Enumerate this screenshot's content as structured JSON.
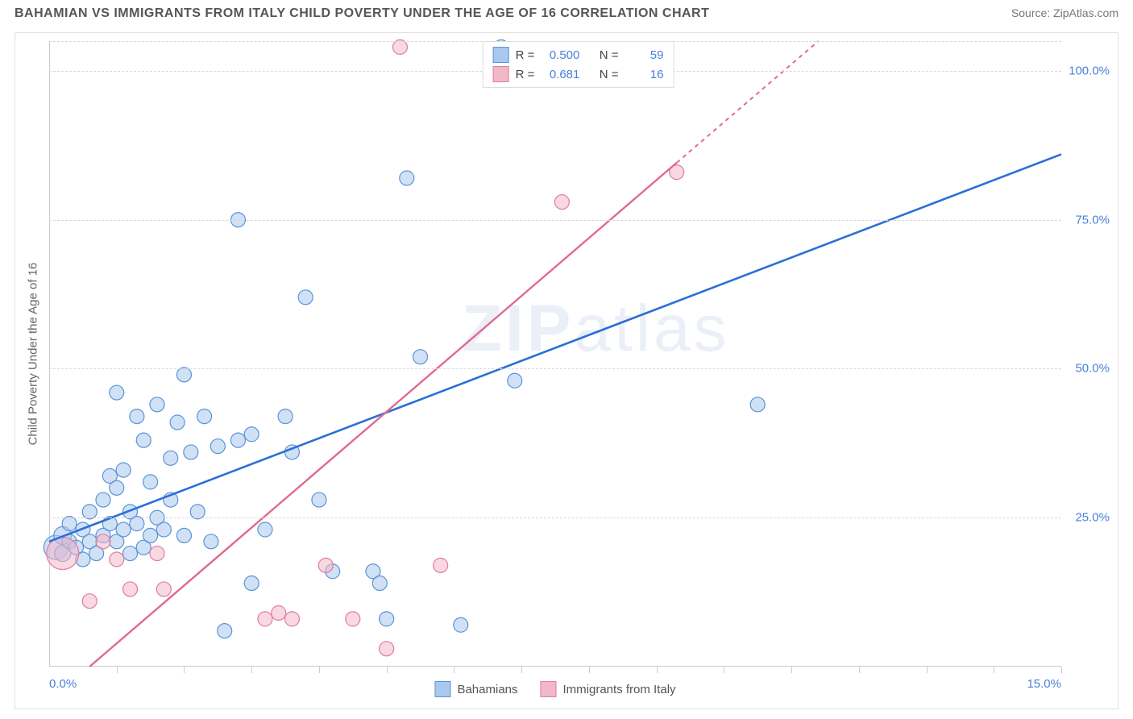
{
  "header": {
    "title": "BAHAMIAN VS IMMIGRANTS FROM ITALY CHILD POVERTY UNDER THE AGE OF 16 CORRELATION CHART",
    "source": "Source: ZipAtlas.com"
  },
  "chart": {
    "type": "scatter",
    "y_axis_label": "Child Poverty Under the Age of 16",
    "watermark": "ZIPatlas",
    "xlim": [
      0,
      15
    ],
    "ylim": [
      0,
      105
    ],
    "x_ticks": [
      0,
      5,
      10,
      15
    ],
    "x_tick_labels": [
      "0.0%",
      "",
      "",
      "15.0%"
    ],
    "num_x_minor": 15,
    "y_gridlines": [
      25,
      50,
      75,
      100
    ],
    "y_tick_labels": [
      "25.0%",
      "50.0%",
      "75.0%",
      "100.0%"
    ],
    "background_color": "#ffffff",
    "grid_color": "#d8d8d8",
    "axis_label_color": "#4a7fd8",
    "series": [
      {
        "name": "Bahamians",
        "fill": "#a9c8ef",
        "stroke": "#5a93d8",
        "line_color": "#2a6fd6",
        "fill_opacity": 0.55,
        "marker_r": 9,
        "r_stat": "0.500",
        "n_stat": "59",
        "trend": {
          "x1": 0,
          "y1": 21,
          "x2": 15,
          "y2": 86,
          "dash": false
        },
        "points": [
          [
            0.1,
            20,
            15
          ],
          [
            0.2,
            22,
            11
          ],
          [
            0.2,
            19,
            10
          ],
          [
            0.3,
            21,
            9
          ],
          [
            0.3,
            24,
            9
          ],
          [
            0.4,
            20,
            9
          ],
          [
            0.5,
            23,
            9
          ],
          [
            0.5,
            18,
            9
          ],
          [
            0.6,
            26,
            9
          ],
          [
            0.6,
            21,
            9
          ],
          [
            0.7,
            19,
            9
          ],
          [
            0.8,
            28,
            9
          ],
          [
            0.8,
            22,
            9
          ],
          [
            0.9,
            24,
            9
          ],
          [
            0.9,
            32,
            9
          ],
          [
            1.0,
            21,
            9
          ],
          [
            1.0,
            46,
            9
          ],
          [
            1.0,
            30,
            9
          ],
          [
            1.1,
            23,
            9
          ],
          [
            1.1,
            33,
            9
          ],
          [
            1.2,
            19,
            9
          ],
          [
            1.2,
            26,
            9
          ],
          [
            1.3,
            24,
            9
          ],
          [
            1.3,
            42,
            9
          ],
          [
            1.4,
            20,
            9
          ],
          [
            1.4,
            38,
            9
          ],
          [
            1.5,
            22,
            9
          ],
          [
            1.5,
            31,
            9
          ],
          [
            1.6,
            25,
            9
          ],
          [
            1.6,
            44,
            9
          ],
          [
            1.7,
            23,
            9
          ],
          [
            1.8,
            35,
            9
          ],
          [
            1.8,
            28,
            9
          ],
          [
            1.9,
            41,
            9
          ],
          [
            2.0,
            49,
            9
          ],
          [
            2.0,
            22,
            9
          ],
          [
            2.1,
            36,
            9
          ],
          [
            2.2,
            26,
            9
          ],
          [
            2.3,
            42,
            9
          ],
          [
            2.4,
            21,
            9
          ],
          [
            2.5,
            37,
            9
          ],
          [
            2.6,
            6,
            9
          ],
          [
            2.8,
            75,
            9
          ],
          [
            2.8,
            38,
            9
          ],
          [
            3.0,
            14,
            9
          ],
          [
            3.0,
            39,
            9
          ],
          [
            3.2,
            23,
            9
          ],
          [
            3.5,
            42,
            9
          ],
          [
            3.6,
            36,
            9
          ],
          [
            3.8,
            62,
            9
          ],
          [
            4.0,
            28,
            9
          ],
          [
            4.2,
            16,
            9
          ],
          [
            4.8,
            16,
            9
          ],
          [
            4.9,
            14,
            9
          ],
          [
            5.0,
            8,
            9
          ],
          [
            5.3,
            82,
            9
          ],
          [
            5.5,
            52,
            9
          ],
          [
            6.1,
            7,
            9
          ],
          [
            6.7,
            104,
            9
          ],
          [
            6.9,
            48,
            9
          ],
          [
            10.5,
            44,
            9
          ]
        ]
      },
      {
        "name": "Immigrants from Italy",
        "fill": "#f2b8c8",
        "stroke": "#e07d9d",
        "line_color": "#e06a8f",
        "fill_opacity": 0.55,
        "marker_r": 9,
        "r_stat": "0.681",
        "n_stat": "16",
        "trend": {
          "x1": 0.6,
          "y1": 0,
          "x2": 11.4,
          "y2": 105,
          "dash_after_x": 9.3
        },
        "points": [
          [
            0.2,
            19,
            20
          ],
          [
            0.6,
            11,
            9
          ],
          [
            0.8,
            21,
            9
          ],
          [
            1.0,
            18,
            9
          ],
          [
            1.2,
            13,
            9
          ],
          [
            1.6,
            19,
            9
          ],
          [
            1.7,
            13,
            9
          ],
          [
            3.2,
            8,
            9
          ],
          [
            3.4,
            9,
            9
          ],
          [
            3.6,
            8,
            9
          ],
          [
            4.1,
            17,
            9
          ],
          [
            4.5,
            8,
            9
          ],
          [
            5.0,
            3,
            9
          ],
          [
            5.2,
            104,
            9
          ],
          [
            5.8,
            17,
            9
          ],
          [
            7.6,
            78,
            9
          ],
          [
            9.3,
            83,
            9
          ]
        ]
      }
    ],
    "legend_top": {
      "r_label": "R =",
      "n_label": "N ="
    },
    "legend_bottom": [
      "Bahamians",
      "Immigrants from Italy"
    ]
  }
}
